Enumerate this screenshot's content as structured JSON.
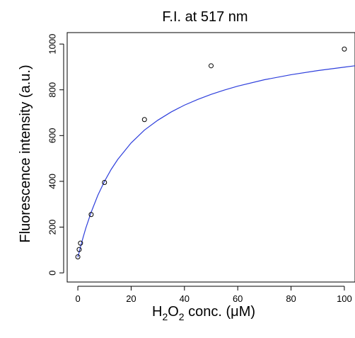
{
  "chart_data": {
    "type": "scatter",
    "title": "F.I. at 517 nm",
    "xlabel": {
      "base": "H",
      "sub1": "2",
      "mid": "O",
      "sub2": "2",
      "rest": " conc. (μM)"
    },
    "ylabel": "Fluorescence intensity (a.u.)",
    "xlim": [
      -4,
      104
    ],
    "ylim": [
      -40,
      1050
    ],
    "x_ticks": [
      0,
      20,
      40,
      60,
      80,
      100
    ],
    "x_tick_labels": [
      "0",
      "20",
      "40",
      "60",
      "80",
      "100"
    ],
    "y_ticks": [
      0,
      200,
      400,
      600,
      800,
      1000
    ],
    "y_tick_labels": [
      "0",
      "200",
      "400",
      "600",
      "800",
      "1000"
    ],
    "grid": false,
    "series": [
      {
        "type": "scatter",
        "marker": "open-circle",
        "x": [
          0,
          0.5,
          1,
          5,
          10,
          25,
          50,
          100
        ],
        "y": [
          70,
          102,
          130,
          255,
          395,
          670,
          905,
          978
        ]
      },
      {
        "type": "line",
        "curve": "hyperbolic fit",
        "color": "#2e3fdc",
        "x": [
          0,
          1,
          2,
          3,
          5,
          7.5,
          10,
          12.5,
          15,
          20,
          25,
          30,
          35,
          40,
          45,
          50,
          55,
          60,
          70,
          80,
          90,
          100,
          104
        ],
        "y": [
          68,
          114,
          156,
          196,
          265,
          339,
          400,
          452,
          496,
          568,
          624,
          667,
          703,
          733,
          758,
          780,
          799,
          816,
          844,
          866,
          884,
          899,
          905
        ]
      }
    ],
    "colors": {
      "fit_line": "#2e3fdc",
      "points": "#000000",
      "axes": "#000000"
    }
  }
}
